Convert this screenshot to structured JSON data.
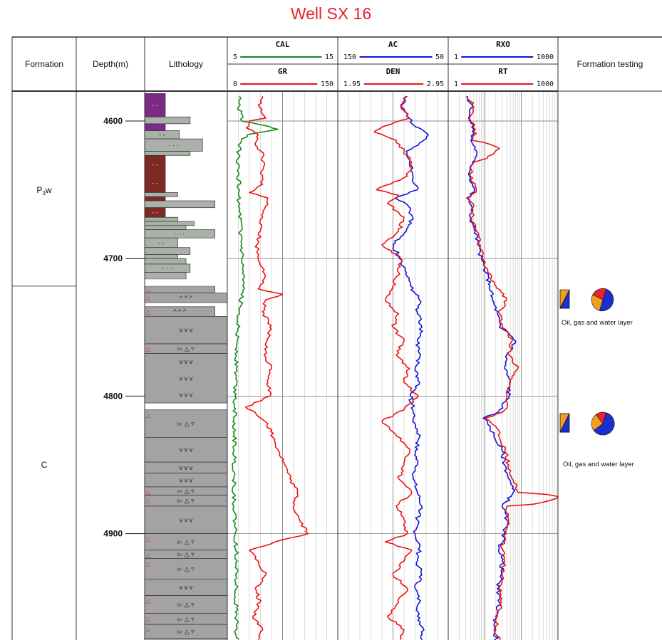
{
  "title": "Well SX 16",
  "headers": {
    "formation": "Formation",
    "depth": "Depth(m)",
    "lithology": "Lithology",
    "testing": "Formation testing"
  },
  "tracks": [
    {
      "curves": [
        {
          "name": "CAL",
          "min": "5",
          "max": "15",
          "color": "#1a8a1a"
        },
        {
          "name": "GR",
          "min": "0",
          "max": "150",
          "color": "#ee1111"
        }
      ]
    },
    {
      "curves": [
        {
          "name": "AC",
          "min": "150",
          "max": "50",
          "color": "#1111dd"
        },
        {
          "name": "DEN",
          "min": "1.95",
          "max": "2.95",
          "color": "#ee1111"
        }
      ]
    },
    {
      "curves": [
        {
          "name": "RXO",
          "min": "1",
          "max": "1000",
          "color": "#1111dd"
        },
        {
          "name": "RT",
          "min": "1",
          "max": "1000",
          "color": "#ee1111"
        }
      ]
    }
  ],
  "formations": [
    {
      "name": "P",
      "sub": "3",
      "suffix": "w",
      "top": 4580,
      "bottom": 4720
    },
    {
      "name": "C",
      "sub": "",
      "suffix": "",
      "top": 4720,
      "bottom": 4990
    }
  ],
  "depth_ticks": [
    "4600",
    "4700",
    "4800",
    "4900"
  ],
  "testing": [
    {
      "label": "Oil, gas and water layer",
      "depth": 4730,
      "pie": [
        0.5,
        0.28,
        0.22
      ]
    },
    {
      "label": "Oil, gas and water layer",
      "depth": 4820,
      "pie": [
        0.6,
        0.25,
        0.15
      ]
    }
  ],
  "lithology": [
    {
      "top": 4580,
      "bottom": 4597,
      "color": "#7b2a86",
      "pattern": "dash",
      "width": 0.25
    },
    {
      "top": 4597,
      "bottom": 4602,
      "color": "#a9b1a9",
      "pattern": "dot",
      "width": 0.55
    },
    {
      "top": 4602,
      "bottom": 4607,
      "color": "#7b2a86",
      "pattern": "dash",
      "width": 0.25
    },
    {
      "top": 4607,
      "bottom": 4613,
      "color": "#a9b1a9",
      "pattern": "dash",
      "width": 0.42
    },
    {
      "top": 4613,
      "bottom": 4622,
      "color": "#a9b1a9",
      "pattern": "dot",
      "width": 0.7
    },
    {
      "top": 4622,
      "bottom": 4625,
      "color": "#a9b1a9",
      "pattern": "dot",
      "width": 0.55
    },
    {
      "top": 4625,
      "bottom": 4652,
      "color": "#7e2a23",
      "pattern": "dash",
      "width": 0.25
    },
    {
      "top": 4652,
      "bottom": 4655,
      "color": "#a9b1a9",
      "pattern": "dot",
      "width": 0.4
    },
    {
      "top": 4655,
      "bottom": 4658,
      "color": "#7e2a23",
      "pattern": "dash",
      "width": 0.25
    },
    {
      "top": 4658,
      "bottom": 4663,
      "color": "#a9b1a9",
      "pattern": "dot",
      "width": 0.85
    },
    {
      "top": 4663,
      "bottom": 4670,
      "color": "#7e2a23",
      "pattern": "dash",
      "width": 0.25
    },
    {
      "top": 4670,
      "bottom": 4673,
      "color": "#a9b1a9",
      "pattern": "dot",
      "width": 0.4
    },
    {
      "top": 4673,
      "bottom": 4676,
      "color": "#a9b1a9",
      "pattern": "dot",
      "width": 0.6
    },
    {
      "top": 4676,
      "bottom": 4679,
      "color": "#a9b1a9",
      "pattern": "dash",
      "width": 0.5
    },
    {
      "top": 4679,
      "bottom": 4685,
      "color": "#a9b1a9",
      "pattern": "dot",
      "width": 0.85
    },
    {
      "top": 4685,
      "bottom": 4692,
      "color": "#a9b1a9",
      "pattern": "dash",
      "width": 0.4
    },
    {
      "top": 4692,
      "bottom": 4697,
      "color": "#a9b1a9",
      "pattern": "dash",
      "width": 0.55
    },
    {
      "top": 4697,
      "bottom": 4700,
      "color": "#a9b1a9",
      "pattern": "dash",
      "width": 0.4
    },
    {
      "top": 4700,
      "bottom": 4704,
      "color": "#a9b1a9",
      "pattern": "dash",
      "width": 0.5
    },
    {
      "top": 4704,
      "bottom": 4710,
      "color": "#a9b1a9",
      "pattern": "dot",
      "width": 0.55
    },
    {
      "top": 4710,
      "bottom": 4715,
      "color": "#a9b1a9",
      "pattern": "dash",
      "width": 0.5
    },
    {
      "top": 4720,
      "bottom": 4725,
      "color": "#a3a3a3",
      "pattern": "caret",
      "width": 0.85
    },
    {
      "top": 4725,
      "bottom": 4732,
      "color": "#a3a3a3",
      "pattern": "caret",
      "width": 1.0
    },
    {
      "top": 4735,
      "bottom": 4742,
      "color": "#a3a3a3",
      "pattern": "caret",
      "width": 0.85
    },
    {
      "top": 4742,
      "bottom": 4762,
      "color": "#a3a3a3",
      "pattern": "vee",
      "width": 1.0
    },
    {
      "top": 4762,
      "bottom": 4769,
      "color": "#a3a3a3",
      "pattern": "tri",
      "width": 1.0
    },
    {
      "top": 4769,
      "bottom": 4805,
      "color": "#a3a3a3",
      "pattern": "vee",
      "width": 1.0
    },
    {
      "top": 4810,
      "bottom": 4830,
      "color": "#a3a3a3",
      "pattern": "tri",
      "width": 1.0
    },
    {
      "top": 4830,
      "bottom": 4848,
      "color": "#a3a3a3",
      "pattern": "vee",
      "width": 1.0
    },
    {
      "top": 4848,
      "bottom": 4856,
      "color": "#a3a3a3",
      "pattern": "vee",
      "width": 1.0
    },
    {
      "top": 4856,
      "bottom": 4866,
      "color": "#a3a3a3",
      "pattern": "vee",
      "width": 1.0
    },
    {
      "top": 4866,
      "bottom": 4872,
      "color": "#a3a3a3",
      "pattern": "tri",
      "width": 1.0
    },
    {
      "top": 4872,
      "bottom": 4880,
      "color": "#a3a3a3",
      "pattern": "tri",
      "width": 1.0
    },
    {
      "top": 4880,
      "bottom": 4900,
      "color": "#a3a3a3",
      "pattern": "vee",
      "width": 1.0
    },
    {
      "top": 4900,
      "bottom": 4912,
      "color": "#a3a3a3",
      "pattern": "tri",
      "width": 1.0
    },
    {
      "top": 4912,
      "bottom": 4918,
      "color": "#a3a3a3",
      "pattern": "tri",
      "width": 1.0
    },
    {
      "top": 4918,
      "bottom": 4933,
      "color": "#a3a3a3",
      "pattern": "tri",
      "width": 1.0
    },
    {
      "top": 4933,
      "bottom": 4945,
      "color": "#a3a3a3",
      "pattern": "vee",
      "width": 1.0
    },
    {
      "top": 4945,
      "bottom": 4958,
      "color": "#a3a3a3",
      "pattern": "tri",
      "width": 1.0
    },
    {
      "top": 4958,
      "bottom": 4966,
      "color": "#a3a3a3",
      "pattern": "tri",
      "width": 1.0
    },
    {
      "top": 4966,
      "bottom": 4976,
      "color": "#a3a3a3",
      "pattern": "tri",
      "width": 1.0
    },
    {
      "top": 4976,
      "bottom": 4990,
      "color": "#a3a3a3",
      "pattern": "tri",
      "width": 1.0
    }
  ],
  "chart_data": {
    "type": "line",
    "title": "Well SX 16",
    "y_axis": {
      "label": "Depth(m)",
      "range": [
        4580,
        4990
      ],
      "inverted": true,
      "ticks": [
        4600,
        4700,
        4800,
        4900
      ]
    },
    "series": [
      {
        "name": "CAL",
        "track": 1,
        "scale": "linear",
        "range": [
          5,
          15
        ],
        "color": "#1a8a1a",
        "depth": [
          4582,
          4590,
          4596,
          4600,
          4604,
          4606,
          4610,
          4616,
          4624,
          4636,
          4650,
          4662,
          4680,
          4700,
          4720,
          4740,
          4760,
          4780,
          4800,
          4820,
          4840,
          4860,
          4880,
          4900,
          4920,
          4940,
          4960,
          4980,
          4990
        ],
        "values": [
          6.1,
          6.0,
          6.4,
          6.3,
          8.8,
          9.6,
          6.8,
          6.2,
          6.0,
          5.9,
          6.1,
          6.0,
          6.2,
          6.3,
          6.4,
          6.1,
          5.9,
          5.8,
          5.7,
          5.7,
          5.6,
          5.6,
          5.6,
          5.7,
          5.9,
          5.8,
          5.8,
          5.9,
          6.0
        ]
      },
      {
        "name": "GR",
        "track": 1,
        "scale": "linear",
        "range": [
          0,
          150
        ],
        "color": "#ee1111",
        "depth": [
          4582,
          4590,
          4598,
          4600,
          4605,
          4610,
          4616,
          4622,
          4630,
          4638,
          4646,
          4652,
          4656,
          4662,
          4670,
          4680,
          4690,
          4700,
          4708,
          4716,
          4722,
          4726,
          4730,
          4740,
          4750,
          4760,
          4770,
          4780,
          4790,
          4800,
          4808,
          4812,
          4820,
          4830,
          4840,
          4850,
          4860,
          4870,
          4880,
          4890,
          4900,
          4906,
          4912,
          4920,
          4930,
          4940,
          4950,
          4960,
          4970,
          4980,
          4990
        ],
        "values": [
          48,
          44,
          52,
          30,
          26,
          42,
          38,
          46,
          50,
          45,
          48,
          30,
          55,
          52,
          48,
          45,
          40,
          42,
          50,
          48,
          42,
          75,
          52,
          50,
          58,
          54,
          50,
          60,
          55,
          58,
          25,
          38,
          55,
          62,
          70,
          78,
          85,
          95,
          90,
          98,
          110,
          65,
          30,
          42,
          52,
          38,
          44,
          35,
          48,
          40,
          42
        ]
      },
      {
        "name": "AC",
        "track": 2,
        "scale": "linear",
        "range": [
          150,
          50
        ],
        "color": "#1111dd",
        "depth": [
          4582,
          4590,
          4598,
          4604,
          4610,
          4616,
          4622,
          4630,
          4640,
          4650,
          4656,
          4662,
          4670,
          4680,
          4690,
          4700,
          4710,
          4720,
          4730,
          4740,
          4750,
          4760,
          4770,
          4780,
          4790,
          4800,
          4810,
          4820,
          4830,
          4840,
          4850,
          4860,
          4870,
          4880,
          4890,
          4900,
          4910,
          4920,
          4930,
          4940,
          4950,
          4960,
          4970,
          4980,
          4990
        ],
        "values": [
          88,
          92,
          85,
          80,
          68,
          76,
          88,
          85,
          82,
          78,
          98,
          86,
          82,
          88,
          100,
          94,
          88,
          84,
          76,
          78,
          74,
          78,
          75,
          80,
          76,
          84,
          82,
          80,
          76,
          80,
          78,
          82,
          78,
          74,
          78,
          80,
          76,
          78,
          74,
          80,
          76,
          78,
          72,
          76,
          74
        ]
      },
      {
        "name": "DEN",
        "track": 2,
        "scale": "linear",
        "range": [
          1.95,
          2.95
        ],
        "color": "#ee1111",
        "depth": [
          4582,
          4590,
          4598,
          4604,
          4608,
          4614,
          4622,
          4630,
          4640,
          4650,
          4654,
          4660,
          4670,
          4680,
          4690,
          4700,
          4710,
          4720,
          4730,
          4740,
          4750,
          4760,
          4770,
          4780,
          4790,
          4800,
          4810,
          4818,
          4826,
          4834,
          4840,
          4850,
          4860,
          4870,
          4880,
          4890,
          4900,
          4906,
          4912,
          4920,
          4930,
          4940,
          4950,
          4960,
          4970,
          4980,
          4990
        ],
        "values": [
          2.58,
          2.52,
          2.6,
          2.36,
          2.28,
          2.48,
          2.55,
          2.62,
          2.58,
          2.3,
          2.5,
          2.4,
          2.55,
          2.5,
          2.35,
          2.52,
          2.5,
          2.45,
          2.38,
          2.5,
          2.45,
          2.55,
          2.48,
          2.6,
          2.55,
          2.68,
          2.55,
          2.35,
          2.45,
          2.55,
          2.6,
          2.55,
          2.5,
          2.62,
          2.48,
          2.55,
          2.58,
          2.38,
          2.62,
          2.55,
          2.45,
          2.58,
          2.5,
          2.4,
          2.55,
          2.48,
          2.52
        ]
      },
      {
        "name": "RXO",
        "track": 3,
        "scale": "log",
        "range": [
          1,
          1000
        ],
        "color": "#1111dd",
        "depth": [
          4582,
          4590,
          4598,
          4606,
          4614,
          4622,
          4630,
          4640,
          4650,
          4656,
          4662,
          4670,
          4680,
          4690,
          4700,
          4710,
          4720,
          4730,
          4740,
          4750,
          4760,
          4770,
          4780,
          4790,
          4800,
          4810,
          4816,
          4822,
          4830,
          4840,
          4850,
          4860,
          4870,
          4880,
          4890,
          4900,
          4910,
          4920,
          4930,
          4940,
          4950,
          4960,
          4970,
          4980,
          4990
        ],
        "values": [
          3.2,
          4.5,
          3.6,
          5.0,
          4.2,
          6.0,
          4.6,
          3.8,
          5.2,
          3.4,
          4.4,
          4.0,
          5.5,
          6.5,
          8.0,
          10.5,
          14,
          16,
          22,
          25,
          70,
          40,
          35,
          48,
          45,
          25,
          9,
          14,
          18,
          30,
          35,
          45,
          60,
          30,
          40,
          35,
          25,
          30,
          28,
          22,
          25,
          20,
          18,
          22,
          24
        ]
      },
      {
        "name": "RT",
        "track": 3,
        "scale": "log",
        "range": [
          1,
          1000
        ],
        "color": "#ee1111",
        "depth": [
          4582,
          4590,
          4598,
          4606,
          4614,
          4620,
          4630,
          4640,
          4650,
          4656,
          4662,
          4670,
          4680,
          4690,
          4700,
          4710,
          4720,
          4730,
          4740,
          4750,
          4760,
          4770,
          4780,
          4790,
          4800,
          4810,
          4816,
          4822,
          4830,
          4840,
          4850,
          4860,
          4870,
          4873,
          4880,
          4890,
          4900,
          4910,
          4920,
          4930,
          4940,
          4950,
          4960,
          4970,
          4980,
          4990
        ],
        "values": [
          3.4,
          5.0,
          3.8,
          5.5,
          4.5,
          25,
          5.0,
          4.0,
          5.8,
          3.2,
          5.0,
          4.4,
          6.0,
          7.5,
          8.5,
          12,
          20,
          40,
          25,
          30,
          55,
          45,
          80,
          50,
          40,
          35,
          10,
          20,
          25,
          35,
          45,
          55,
          80,
          1000,
          40,
          45,
          38,
          28,
          35,
          30,
          25,
          28,
          22,
          20,
          26,
          28
        ]
      }
    ]
  }
}
